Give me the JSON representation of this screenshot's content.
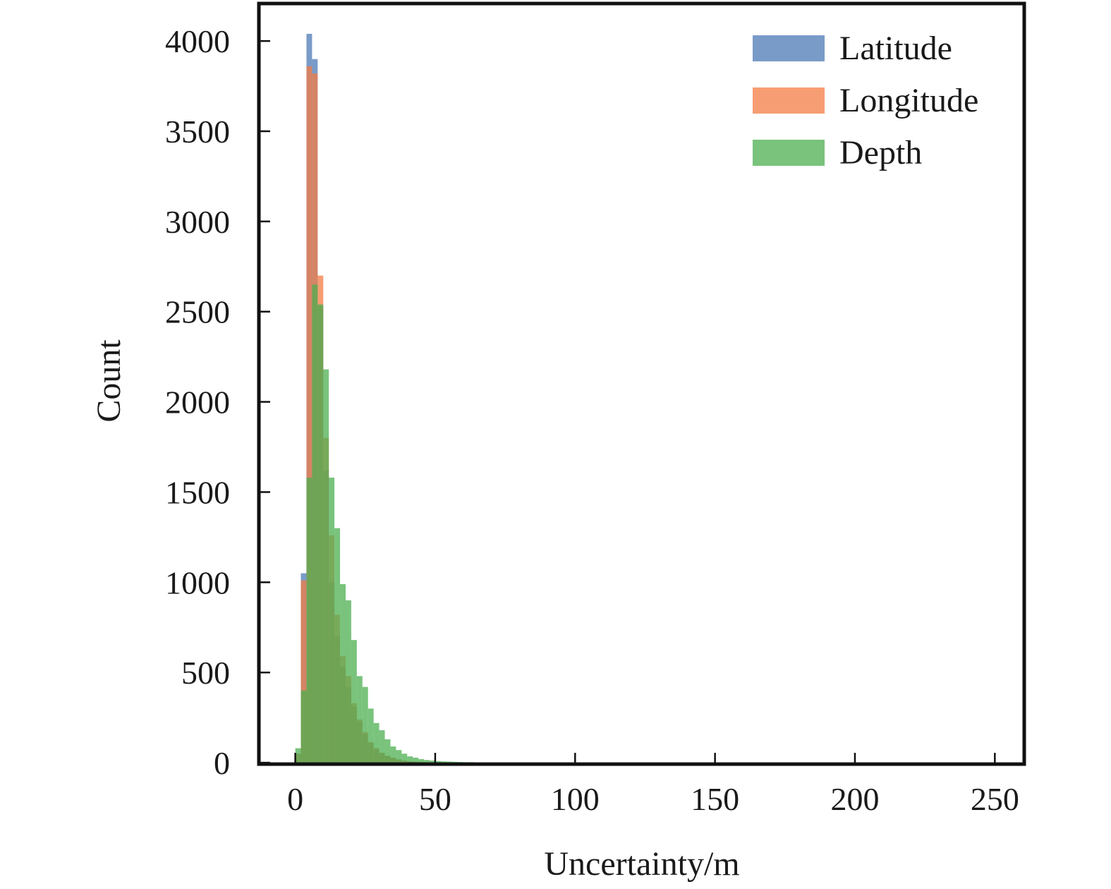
{
  "chart_data": {
    "type": "histogram",
    "title": "",
    "xlabel": "Uncertainty/m",
    "ylabel": "Count",
    "xlim": [
      -12.5,
      260
    ],
    "ylim": [
      0,
      4200
    ],
    "xticks": [
      "0",
      "50",
      "100",
      "150",
      "200",
      "250"
    ],
    "yticks": [
      "0",
      "500",
      "1000",
      "1500",
      "2000",
      "2500",
      "3000",
      "3500",
      "4000"
    ],
    "bin_width": 2,
    "bins_start": [
      0,
      2,
      4,
      6,
      8,
      10,
      12,
      14,
      16,
      18,
      20,
      22,
      24,
      26,
      28,
      30,
      32,
      34,
      36,
      38,
      40,
      42,
      44,
      46,
      48,
      50,
      52,
      54,
      56,
      58,
      60,
      62,
      64,
      66,
      68,
      70,
      72,
      74,
      76,
      78,
      80,
      82,
      84,
      86,
      88,
      90,
      92,
      94,
      96,
      98
    ],
    "legend_position": "top-right",
    "grid": false,
    "series": [
      {
        "name": "Latitude",
        "color": "#4c7ab5",
        "values": [
          50,
          1050,
          4040,
          3900,
          2530,
          1620,
          1000,
          700,
          530,
          420,
          310,
          230,
          160,
          110,
          80,
          55,
          38,
          27,
          18,
          12,
          8,
          6,
          4,
          3,
          2,
          2,
          1,
          1,
          1,
          1,
          0,
          0,
          0,
          0,
          0,
          0,
          0,
          0,
          0,
          0,
          0,
          0,
          0,
          0,
          0,
          0,
          0,
          0,
          0,
          0
        ]
      },
      {
        "name": "Longitude",
        "color": "#f47c44",
        "values": [
          50,
          1010,
          3860,
          3820,
          2700,
          1800,
          1260,
          820,
          590,
          480,
          330,
          240,
          170,
          115,
          80,
          55,
          38,
          27,
          18,
          12,
          8,
          6,
          4,
          3,
          2,
          2,
          1,
          1,
          1,
          1,
          0,
          0,
          0,
          0,
          0,
          0,
          0,
          0,
          0,
          0,
          0,
          0,
          0,
          0,
          0,
          0,
          0,
          0,
          0,
          0
        ]
      },
      {
        "name": "Depth",
        "color": "#4caf50",
        "values": [
          80,
          400,
          1580,
          2650,
          2540,
          2180,
          1580,
          1300,
          990,
          900,
          680,
          480,
          420,
          300,
          220,
          180,
          130,
          90,
          70,
          50,
          35,
          28,
          20,
          15,
          12,
          9,
          7,
          6,
          5,
          4,
          3,
          3,
          2,
          2,
          2,
          2,
          1,
          1,
          1,
          1,
          1,
          1,
          1,
          1,
          1,
          1,
          1,
          1,
          0,
          0
        ]
      }
    ]
  }
}
